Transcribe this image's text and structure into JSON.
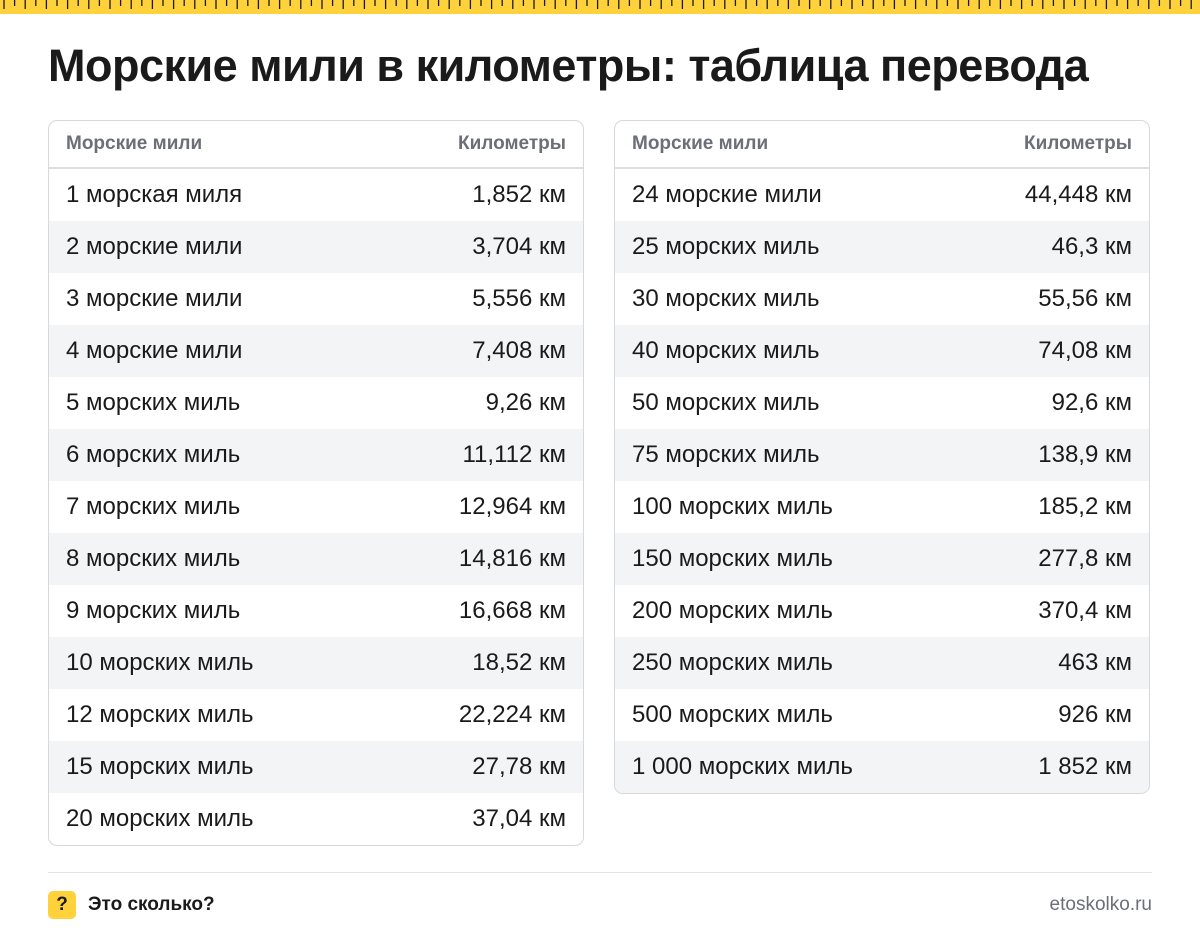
{
  "header": {
    "title": "Морские мили в километры: таблица перевода"
  },
  "colors": {
    "accent": "#ffd23c",
    "text": "#1a1a1a",
    "muted": "#6b6f76",
    "stripe": "#f3f4f6"
  },
  "tables": {
    "left": {
      "col1": "Морские мили",
      "col2": "Километры",
      "rows": [
        [
          "1 морская миля",
          "1,852 км"
        ],
        [
          "2 морские мили",
          "3,704 км"
        ],
        [
          "3 морские мили",
          "5,556 км"
        ],
        [
          "4 морские мили",
          "7,408 км"
        ],
        [
          "5 морских миль",
          "9,26 км"
        ],
        [
          "6 морских миль",
          "11,112 км"
        ],
        [
          "7 морских миль",
          "12,964 км"
        ],
        [
          "8 морских миль",
          "14,816 км"
        ],
        [
          "9 морских миль",
          "16,668 км"
        ],
        [
          "10 морских миль",
          "18,52 км"
        ],
        [
          "12 морских миль",
          "22,224 км"
        ],
        [
          "15 морских миль",
          "27,78 км"
        ],
        [
          "20 морских миль",
          "37,04 км"
        ]
      ]
    },
    "right": {
      "col1": "Морские мили",
      "col2": "Километры",
      "rows": [
        [
          "24 морские мили",
          "44,448 км"
        ],
        [
          "25 морских миль",
          "46,3 км"
        ],
        [
          "30 морских миль",
          "55,56 км"
        ],
        [
          "40 морских миль",
          "74,08 км"
        ],
        [
          "50 морских миль",
          "92,6 км"
        ],
        [
          "75 морских миль",
          "138,9 км"
        ],
        [
          "100 морских миль",
          "185,2 км"
        ],
        [
          "150 морских миль",
          "277,8 км"
        ],
        [
          "200 морских миль",
          "370,4 км"
        ],
        [
          "250 морских миль",
          "463 км"
        ],
        [
          "500 морских миль",
          "926 км"
        ],
        [
          "1 000 морских миль",
          "1 852 км"
        ]
      ]
    }
  },
  "footer": {
    "logo_mark": "?",
    "brand": "Это сколько?",
    "site": "etoskolko.ru"
  }
}
